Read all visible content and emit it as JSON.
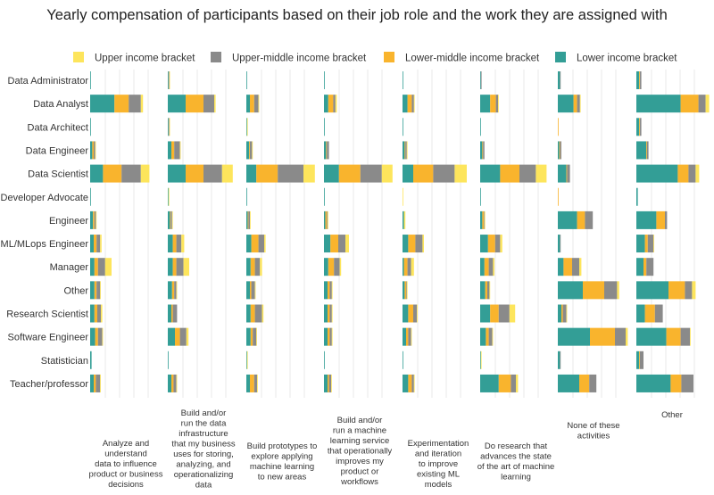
{
  "chart_data": {
    "type": "bar",
    "orientation": "horizontal",
    "stacked": true,
    "title": "Yearly compensation of participants based on their job role and the work they are assigned with",
    "legend_position": "top",
    "grid": true,
    "roles": [
      "Data Administrator",
      "Data Analyst",
      "Data Architect",
      "Data Engineer",
      "Data Scientist",
      "Developer Advocate",
      "Engineer",
      "ML/MLops Engineer",
      "Manager",
      "Other",
      "Research Scientist",
      "Software Engineer",
      "Statistician",
      "Teacher/professor"
    ],
    "series": [
      {
        "name": "Lower income bracket",
        "color": "#339e96"
      },
      {
        "name": "Lower-middle income bracket",
        "color": "#f9b42d"
      },
      {
        "name": "Upper-middle income bracket",
        "color": "#8a8a8a"
      },
      {
        "name": "Upper income bracket",
        "color": "#fde55c"
      }
    ],
    "legend_order": [
      3,
      2,
      1,
      0
    ],
    "xlim": [
      0,
      100
    ],
    "panels": [
      {
        "label": "Analyze and understand data to influence product or business decisions",
        "values": [
          [
            1,
            0,
            0,
            0
          ],
          [
            34,
            20,
            17,
            3
          ],
          [
            1,
            0,
            0,
            0
          ],
          [
            3,
            2,
            2,
            1
          ],
          [
            18,
            26,
            27,
            12
          ],
          [
            1,
            0,
            0,
            0
          ],
          [
            4,
            2,
            2,
            1
          ],
          [
            5,
            4,
            5,
            2
          ],
          [
            6,
            5,
            10,
            9
          ],
          [
            6,
            3,
            5,
            1
          ],
          [
            6,
            4,
            5,
            2
          ],
          [
            7,
            4,
            6,
            1
          ],
          [
            2,
            0,
            0,
            0
          ],
          [
            5,
            3,
            6,
            1
          ]
        ]
      },
      {
        "label": "Build and/or run the data infrastructure that my business uses for storing, analyzing, and operationalizing data",
        "values": [
          [
            1,
            0,
            1,
            1
          ],
          [
            25,
            25,
            15,
            2
          ],
          [
            1,
            0,
            1,
            1
          ],
          [
            5,
            4,
            8,
            1
          ],
          [
            25,
            25,
            26,
            15
          ],
          [
            1,
            0,
            0,
            1
          ],
          [
            3,
            1,
            2,
            1
          ],
          [
            7,
            5,
            7,
            4
          ],
          [
            7,
            5,
            10,
            8
          ],
          [
            6,
            3,
            3,
            1
          ],
          [
            5,
            2,
            6,
            0
          ],
          [
            10,
            7,
            9,
            3
          ],
          [
            1,
            0,
            0,
            0
          ],
          [
            5,
            3,
            4,
            1
          ]
        ]
      },
      {
        "label": "Build prototypes to explore applying machine learning to new areas",
        "values": [
          [
            1,
            0,
            0,
            0
          ],
          [
            5,
            6,
            6,
            1
          ],
          [
            1,
            0,
            0,
            1
          ],
          [
            4,
            1,
            3,
            1
          ],
          [
            14,
            30,
            36,
            16
          ],
          [
            1,
            0,
            0,
            0
          ],
          [
            2,
            1,
            2,
            1
          ],
          [
            7,
            10,
            8,
            2
          ],
          [
            6,
            6,
            7,
            3
          ],
          [
            5,
            2,
            5,
            1
          ],
          [
            6,
            6,
            10,
            2
          ],
          [
            6,
            3,
            5,
            1
          ],
          [
            1,
            0,
            0,
            1
          ],
          [
            5,
            6,
            4,
            1
          ]
        ]
      },
      {
        "label": "Build and/or run a machine learning service that operationally improves my product or workflows",
        "values": [
          [
            1,
            0,
            0,
            0
          ],
          [
            6,
            7,
            3,
            2
          ],
          [
            1,
            0,
            0,
            0
          ],
          [
            3,
            1,
            3,
            0
          ],
          [
            21,
            30,
            30,
            15
          ],
          [
            1,
            0,
            0,
            0
          ],
          [
            2,
            2,
            1,
            1
          ],
          [
            9,
            11,
            10,
            5
          ],
          [
            6,
            8,
            8,
            2
          ],
          [
            5,
            3,
            3,
            1
          ],
          [
            5,
            3,
            3,
            1
          ],
          [
            5,
            3,
            3,
            1
          ],
          [
            1,
            0,
            0,
            0
          ],
          [
            5,
            2,
            3,
            1
          ]
        ]
      },
      {
        "label": "Experimentation and iteration to improve existing ML models",
        "values": [
          [
            1,
            0,
            0,
            0
          ],
          [
            7,
            6,
            3,
            1
          ],
          [
            1,
            0,
            0,
            0
          ],
          [
            3,
            1,
            2,
            1
          ],
          [
            15,
            28,
            30,
            17
          ],
          [
            0,
            0,
            0,
            1
          ],
          [
            2,
            0,
            0,
            2
          ],
          [
            8,
            10,
            10,
            2
          ],
          [
            2,
            5,
            5,
            4
          ],
          [
            3,
            2,
            1,
            1
          ],
          [
            8,
            7,
            5,
            1
          ],
          [
            5,
            3,
            4,
            1
          ],
          [
            1,
            0,
            0,
            0
          ],
          [
            8,
            5,
            3,
            1
          ]
        ]
      },
      {
        "label": "Do research that advances the state of the art of machine learning",
        "values": [
          [
            1,
            0,
            1,
            0
          ],
          [
            14,
            8,
            3,
            1
          ],
          [
            1,
            0,
            0,
            0
          ],
          [
            3,
            1,
            2,
            0
          ],
          [
            28,
            27,
            23,
            15
          ],
          [
            1,
            0,
            0,
            0
          ],
          [
            3,
            2,
            1,
            1
          ],
          [
            11,
            10,
            7,
            3
          ],
          [
            6,
            6,
            6,
            2
          ],
          [
            7,
            3,
            3,
            1
          ],
          [
            14,
            12,
            15,
            8
          ],
          [
            8,
            4,
            5,
            1
          ],
          [
            1,
            0,
            0,
            1
          ],
          [
            26,
            17,
            7,
            3
          ]
        ]
      },
      {
        "label": "None of these activities",
        "values": [
          [
            3,
            0,
            1,
            0
          ],
          [
            22,
            5,
            4,
            1
          ],
          [
            0,
            1,
            0,
            0
          ],
          [
            2,
            1,
            2,
            0
          ],
          [
            12,
            1,
            4,
            0
          ],
          [
            0,
            1,
            0,
            0
          ],
          [
            27,
            11,
            11,
            0
          ],
          [
            3,
            0,
            1,
            0
          ],
          [
            8,
            12,
            10,
            3
          ],
          [
            35,
            30,
            18,
            3
          ],
          [
            5,
            2,
            5,
            1
          ],
          [
            45,
            35,
            15,
            3
          ],
          [
            3,
            0,
            1,
            0
          ],
          [
            30,
            14,
            10,
            0
          ]
        ]
      },
      {
        "label": "Other",
        "values": [
          [
            4,
            1,
            2,
            0
          ],
          [
            62,
            25,
            10,
            5
          ],
          [
            4,
            1,
            2,
            0
          ],
          [
            14,
            1,
            2,
            0
          ],
          [
            58,
            15,
            10,
            5
          ],
          [
            2,
            0,
            0,
            0
          ],
          [
            28,
            12,
            3,
            0
          ],
          [
            12,
            4,
            8,
            1
          ],
          [
            10,
            4,
            10,
            0
          ],
          [
            45,
            23,
            10,
            5
          ],
          [
            12,
            14,
            11,
            0
          ],
          [
            42,
            20,
            13,
            1
          ],
          [
            4,
            1,
            5,
            0
          ],
          [
            48,
            15,
            17,
            0
          ]
        ]
      }
    ]
  }
}
